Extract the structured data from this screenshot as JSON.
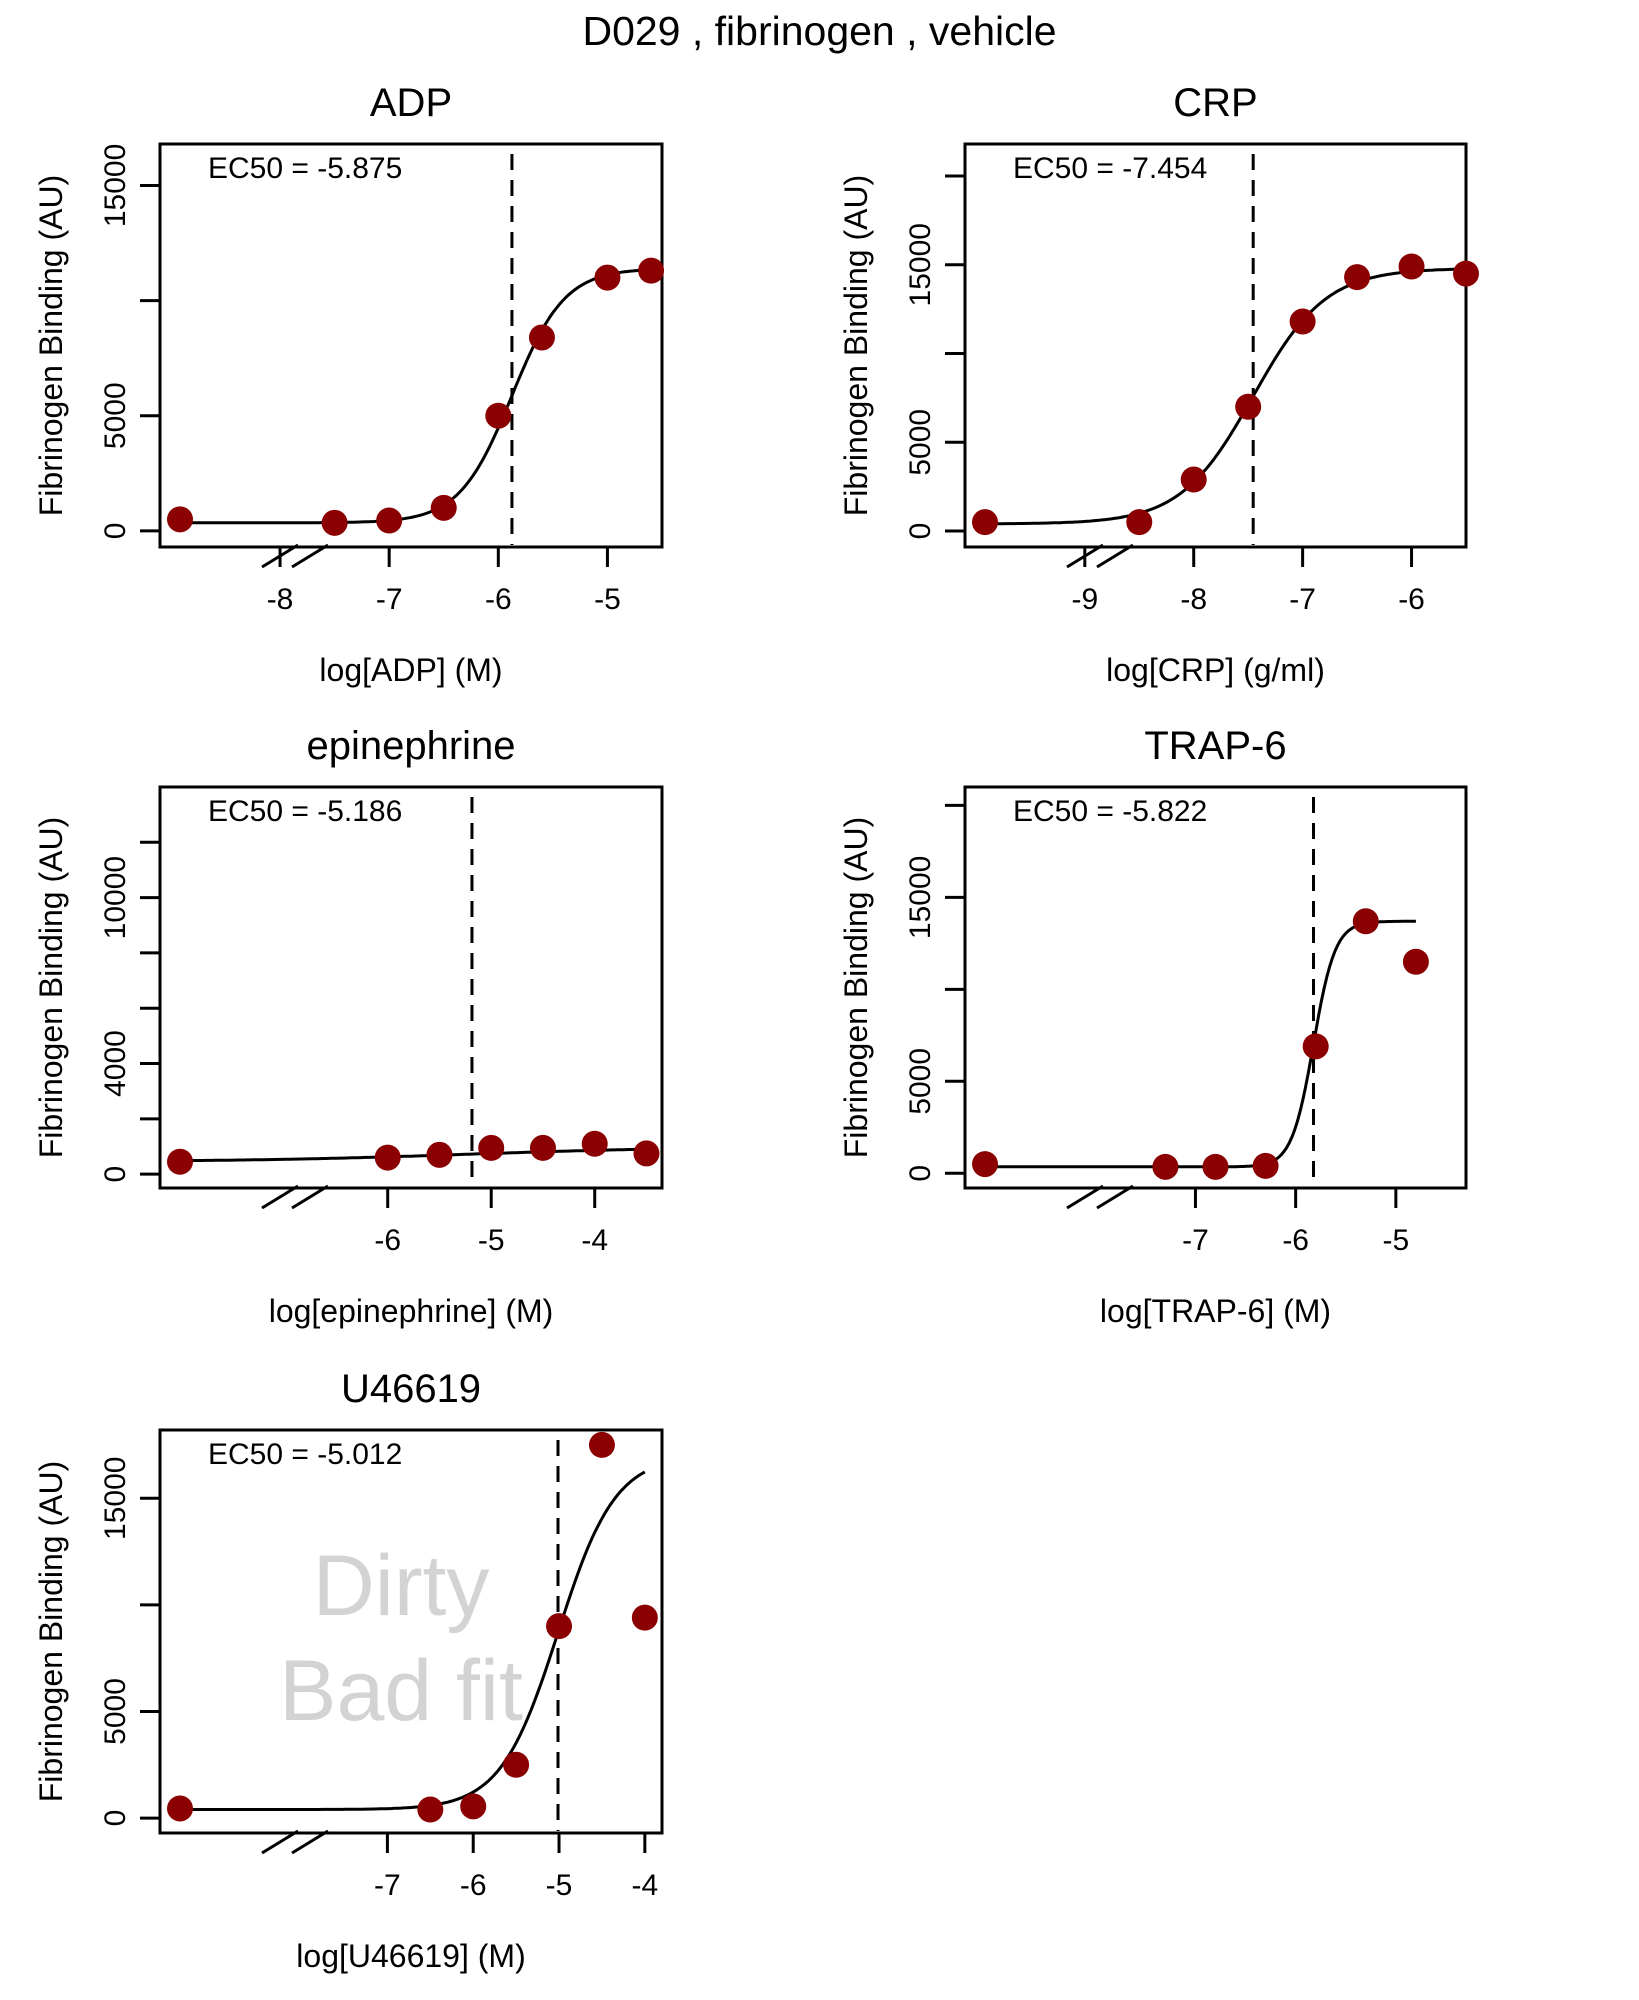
{
  "figure": {
    "title": "D029 ,  fibrinogen ,  vehicle",
    "point_color": "#8b0000",
    "watermark_color": "#d3d3d3"
  },
  "chart_data": [
    {
      "type": "scatter",
      "title": "ADP",
      "xlabel": "log[ADP] (M)",
      "ylabel": "Fibrinogen Binding (AU)",
      "ec50_label": "EC50 =  -5.875",
      "ec50": -5.875,
      "xlim": [
        -9.1,
        -4.5
      ],
      "ylim": [
        -700,
        16800
      ],
      "xticks": [
        -8,
        -7,
        -6,
        -5
      ],
      "xticklabels": [
        "-8",
        "-7",
        "-6",
        "-5"
      ],
      "yticks": [
        0,
        5000,
        10000,
        15000
      ],
      "yticklabels": [
        "0",
        "5000",
        "",
        "15000"
      ],
      "axis_break": true,
      "baseline_point": {
        "y": 500
      },
      "points": [
        [
          -7.5,
          350
        ],
        [
          -7,
          450
        ],
        [
          -6.5,
          1000
        ],
        [
          -6,
          5000
        ],
        [
          -5.6,
          8400
        ],
        [
          -5,
          11000
        ],
        [
          -4.6,
          11300
        ]
      ],
      "fit": {
        "bottom": 350,
        "top": 11400,
        "ec50": -5.875,
        "hill": 1.8
      },
      "watermark": []
    },
    {
      "type": "scatter",
      "title": "CRP",
      "xlabel": "log[CRP] (g/ml)",
      "ylabel": "Fibrinogen Binding (AU)",
      "ec50_label": "EC50 =  -7.454",
      "ec50": -7.454,
      "xlim": [
        -10.1,
        -5.5
      ],
      "ylim": [
        -900,
        21800
      ],
      "xticks": [
        -9,
        -8,
        -7,
        -6
      ],
      "xticklabels": [
        "-9",
        "-8",
        "-7",
        "-6"
      ],
      "yticks": [
        0,
        5000,
        10000,
        15000,
        20000
      ],
      "yticklabels": [
        "0",
        "5000",
        "",
        "15000",
        ""
      ],
      "axis_break": true,
      "baseline_point": {
        "y": 500
      },
      "points": [
        [
          -8.5,
          500
        ],
        [
          -8,
          2900
        ],
        [
          -7.5,
          7000
        ],
        [
          -7,
          11800
        ],
        [
          -6.5,
          14300
        ],
        [
          -6,
          14900
        ],
        [
          -5.5,
          14500
        ]
      ],
      "fit": {
        "bottom": 400,
        "top": 14800,
        "ec50": -7.454,
        "hill": 1.3
      },
      "watermark": []
    },
    {
      "type": "scatter",
      "title": "epinephrine",
      "xlabel": "log[epinephrine] (M)",
      "ylabel": "Fibrinogen Binding (AU)",
      "ec50_label": "EC50 =  -5.186",
      "ec50": -5.186,
      "xlim": [
        -8.2,
        -3.35
      ],
      "ylim": [
        -500,
        14000
      ],
      "xticks": [
        -6,
        -5,
        -4
      ],
      "xticklabels": [
        "-6",
        "-5",
        "-4"
      ],
      "yticks": [
        0,
        2000,
        4000,
        6000,
        8000,
        10000,
        12000
      ],
      "yticklabels": [
        "0",
        "",
        "4000",
        "",
        "",
        "10000",
        ""
      ],
      "axis_break": true,
      "baseline_point": {
        "y": 450
      },
      "points": [
        [
          -6,
          600
        ],
        [
          -5.5,
          700
        ],
        [
          -5,
          950
        ],
        [
          -4.5,
          950
        ],
        [
          -4,
          1100
        ],
        [
          -3.5,
          750
        ]
      ],
      "fit": {
        "bottom": 450,
        "top": 1000,
        "ec50": -5.186,
        "hill": 0.4
      },
      "watermark": []
    },
    {
      "type": "scatter",
      "title": "TRAP-6",
      "xlabel": "log[TRAP-6] (M)",
      "ylabel": "Fibrinogen Binding (AU)",
      "ec50_label": "EC50 =  -5.822",
      "ec50": -5.822,
      "xlim": [
        -9.3,
        -4.3
      ],
      "ylim": [
        -800,
        21000
      ],
      "xticks": [
        -7,
        -6,
        -5
      ],
      "xticklabels": [
        "-7",
        "-6",
        "-5"
      ],
      "yticks": [
        0,
        5000,
        10000,
        15000,
        20000
      ],
      "yticklabels": [
        "0",
        "5000",
        "",
        "15000",
        ""
      ],
      "axis_break": true,
      "baseline_point": {
        "y": 500
      },
      "points": [
        [
          -7.3,
          350
        ],
        [
          -6.8,
          350
        ],
        [
          -6.3,
          400
        ],
        [
          -5.8,
          6900
        ],
        [
          -5.3,
          13700
        ],
        [
          -4.8,
          11500
        ]
      ],
      "fit": {
        "bottom": 350,
        "top": 13700,
        "ec50": -5.822,
        "hill": 4.0
      },
      "watermark": []
    },
    {
      "type": "scatter",
      "title": "U46619",
      "xlabel": "log[U46619] (M)",
      "ylabel": "Fibrinogen Binding (AU)",
      "ec50_label": "EC50 =  -5.012",
      "ec50": -5.012,
      "xlim": [
        -9.65,
        -3.8
      ],
      "ylim": [
        -700,
        18200
      ],
      "xticks": [
        -7,
        -6,
        -5,
        -4
      ],
      "xticklabels": [
        "-7",
        "-6",
        "-5",
        "-4"
      ],
      "yticks": [
        0,
        5000,
        10000,
        15000
      ],
      "yticklabels": [
        "0",
        "5000",
        "",
        "15000"
      ],
      "axis_break": true,
      "baseline_point": {
        "y": 450
      },
      "points": [
        [
          -6.5,
          400
        ],
        [
          -6,
          550
        ],
        [
          -5.5,
          2500
        ],
        [
          -5,
          9000
        ],
        [
          -4.5,
          17500
        ],
        [
          -4,
          9400
        ]
      ],
      "fit": {
        "bottom": 400,
        "top": 17000,
        "ec50": -5.012,
        "hill": 1.3
      },
      "watermark": [
        "Dirty",
        "Bad fit"
      ]
    }
  ]
}
